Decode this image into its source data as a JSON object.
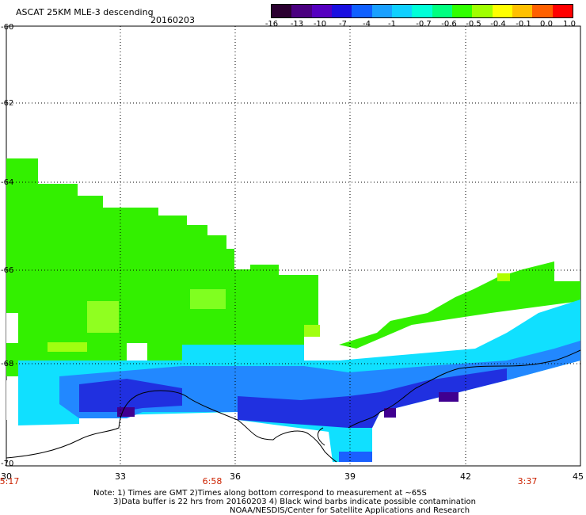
{
  "header": {
    "title": "ASCAT 25KM MLE-3 descending",
    "date": "20160203"
  },
  "colorbar": {
    "labels": [
      "-16",
      "-13",
      "-10",
      "-7",
      "-4",
      "-1",
      "-0.7",
      "-0.6",
      "-0.5",
      "-0.4",
      "-0.1",
      "0.0",
      "1.0"
    ],
    "colors": [
      "#2b0030",
      "#4a0080",
      "#5500c0",
      "#1a10e0",
      "#1060ff",
      "#1aa0ff",
      "#10d0ff",
      "#00ffd8",
      "#00ff80",
      "#30ff00",
      "#a0ff00",
      "#ffff00",
      "#ffc000",
      "#ff6000",
      "#ff0000"
    ]
  },
  "map": {
    "lat_labels": [
      "-60",
      "-62",
      "-64",
      "-66",
      "-68",
      "-70"
    ],
    "lon_labels": [
      "30",
      "33",
      "36",
      "39",
      "42",
      "45"
    ],
    "time_labels": [
      "5:17",
      "6:58",
      "3:37"
    ]
  },
  "notes": {
    "line1": "Note: 1) Times are GMT 2)Times along bottom correspond to measurement at ~65S",
    "line2": "3)Data buffer is 22 hrs from 20160203 4) Black wind barbs indicate possible contamination",
    "line3": "NOAA/NESDIS/Center for Satellite Applications and Research"
  }
}
